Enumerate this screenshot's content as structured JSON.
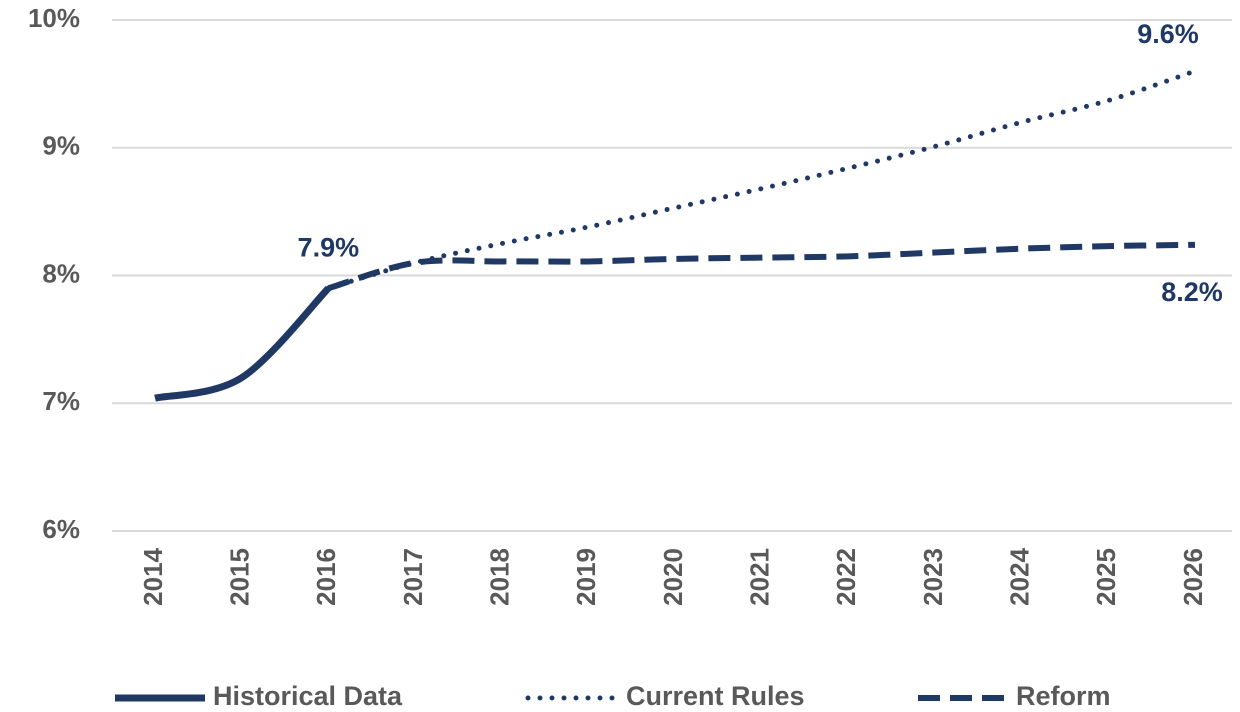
{
  "chart_data": {
    "type": "line",
    "categories": [
      "2014",
      "2015",
      "2016",
      "2017",
      "2018",
      "2019",
      "2020",
      "2021",
      "2022",
      "2023",
      "2024",
      "2025",
      "2026"
    ],
    "series": [
      {
        "name": "Historical Data",
        "color": "#203864",
        "line_style": "solid",
        "values": [
          7.04,
          7.2,
          7.9,
          null,
          null,
          null,
          null,
          null,
          null,
          null,
          null,
          null,
          null
        ],
        "value_labels": [
          null,
          null,
          "7.9%",
          null,
          null,
          null,
          null,
          null,
          null,
          null,
          null,
          null,
          null
        ]
      },
      {
        "name": "Current Rules",
        "color": "#203864",
        "line_style": "dotted",
        "values": [
          null,
          null,
          7.9,
          8.1,
          8.25,
          8.38,
          8.53,
          8.68,
          8.84,
          9.01,
          9.2,
          9.37,
          9.6
        ],
        "value_labels": [
          null,
          null,
          null,
          null,
          null,
          null,
          null,
          null,
          null,
          null,
          null,
          null,
          "9.6%"
        ]
      },
      {
        "name": "Reform",
        "color": "#203864",
        "line_style": "dashed",
        "values": [
          null,
          null,
          7.9,
          8.1,
          8.11,
          8.11,
          8.13,
          8.14,
          8.15,
          8.18,
          8.21,
          8.23,
          8.24
        ],
        "value_labels": [
          null,
          null,
          null,
          null,
          null,
          null,
          null,
          null,
          null,
          null,
          null,
          null,
          "8.2%"
        ]
      }
    ],
    "ylim": [
      6,
      10
    ],
    "yticks": [
      {
        "value": 6,
        "label": "6%"
      },
      {
        "value": 7,
        "label": "7%"
      },
      {
        "value": 8,
        "label": "8%"
      },
      {
        "value": 9,
        "label": "9%"
      },
      {
        "value": 10,
        "label": "10%"
      }
    ],
    "grid": true,
    "legend": "bottom"
  }
}
